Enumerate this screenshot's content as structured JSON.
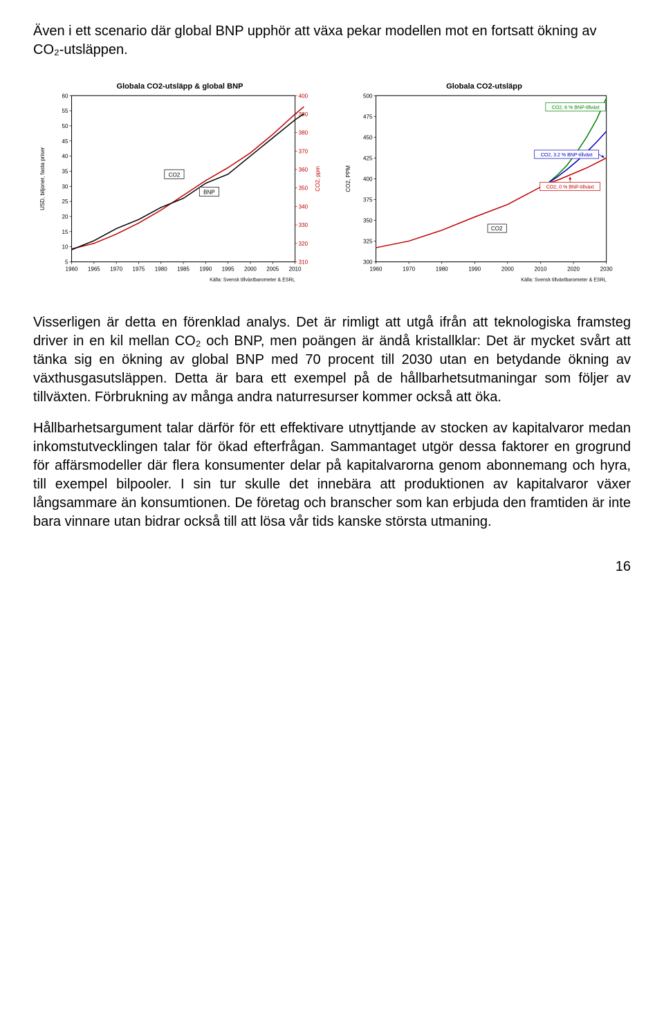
{
  "intro": "Även i ett scenario där global BNP upphör att växa pekar modellen mot en fortsatt ökning av CO₂-utsläppen.",
  "chart_left": {
    "type": "line-dual-axis",
    "title": "Globala CO2-utsläpp & global BNP",
    "title_fontsize": 11,
    "x": {
      "ticks": [
        1960,
        1965,
        1970,
        1975,
        1980,
        1985,
        1990,
        1995,
        2000,
        2005,
        2010
      ],
      "fontsize": 8
    },
    "y_left": {
      "label": "USD, biljoner, fasta priser",
      "ticks": [
        5,
        10,
        15,
        20,
        25,
        30,
        35,
        40,
        45,
        50,
        55,
        60
      ],
      "fontsize": 8,
      "label_fontsize": 8
    },
    "y_right": {
      "label": "CO2, ppm",
      "ticks": [
        310,
        320,
        330,
        340,
        350,
        360,
        370,
        380,
        390,
        400
      ],
      "fontsize": 8,
      "label_fontsize": 8,
      "label_color": "#c00000"
    },
    "series": [
      {
        "name": "CO2",
        "axis": "right",
        "color": "#c00000",
        "width": 1.5,
        "points": [
          [
            1960,
            317
          ],
          [
            1965,
            320
          ],
          [
            1970,
            325
          ],
          [
            1975,
            331
          ],
          [
            1980,
            338
          ],
          [
            1985,
            346
          ],
          [
            1990,
            354
          ],
          [
            1995,
            361
          ],
          [
            2000,
            369
          ],
          [
            2005,
            379
          ],
          [
            2010,
            390
          ],
          [
            2012,
            394
          ]
        ]
      },
      {
        "name": "BNP",
        "axis": "left",
        "color": "#000000",
        "width": 1.5,
        "points": [
          [
            1960,
            9
          ],
          [
            1965,
            12
          ],
          [
            1970,
            16
          ],
          [
            1975,
            19
          ],
          [
            1980,
            23
          ],
          [
            1985,
            26
          ],
          [
            1990,
            31
          ],
          [
            1995,
            34
          ],
          [
            2000,
            40
          ],
          [
            2005,
            46
          ],
          [
            2010,
            52
          ],
          [
            2012,
            54
          ]
        ]
      }
    ],
    "series_labels": [
      {
        "text": "CO2",
        "near": [
          1984,
          353
        ],
        "border": "#000000"
      },
      {
        "text": "BNP",
        "near": [
          1991,
          350
        ],
        "border": "#000000"
      }
    ],
    "source": "Källa: Svensk tillväxtbarometer & ESRL",
    "source_fontsize": 7,
    "background_color": "#ffffff",
    "frame_color": "#000000"
  },
  "chart_right": {
    "type": "line",
    "title": "Globala CO2-utsläpp",
    "title_fontsize": 11,
    "x": {
      "ticks": [
        1960,
        1970,
        1980,
        1990,
        2000,
        2010,
        2020,
        2030
      ],
      "fontsize": 8
    },
    "y_left": {
      "label": "CO2, PPM",
      "ticks": [
        300,
        325,
        350,
        375,
        400,
        425,
        450,
        475,
        500
      ],
      "fontsize": 8,
      "label_fontsize": 8
    },
    "series": [
      {
        "name": "CO2",
        "color": "#c00000",
        "width": 1.5,
        "points": [
          [
            1960,
            317
          ],
          [
            1970,
            325
          ],
          [
            1980,
            338
          ],
          [
            1990,
            354
          ],
          [
            2000,
            369
          ],
          [
            2010,
            390
          ],
          [
            2012,
            394
          ]
        ]
      },
      {
        "name": "CO2, 6 % BNP-tillväxt",
        "color": "#008000",
        "width": 1.5,
        "points": [
          [
            2012,
            394
          ],
          [
            2015,
            404
          ],
          [
            2018,
            416
          ],
          [
            2021,
            432
          ],
          [
            2024,
            450
          ],
          [
            2027,
            471
          ],
          [
            2030,
            497
          ]
        ]
      },
      {
        "name": "CO2, 3.2 % BNP-tillväxt",
        "color": "#0000c0",
        "width": 1.5,
        "points": [
          [
            2012,
            394
          ],
          [
            2015,
            402
          ],
          [
            2018,
            411
          ],
          [
            2021,
            421
          ],
          [
            2024,
            432
          ],
          [
            2027,
            444
          ],
          [
            2030,
            457
          ]
        ]
      },
      {
        "name": "CO2, 0 % BNP-tillväxt",
        "color": "#c00000",
        "width": 1.5,
        "points": [
          [
            2012,
            394
          ],
          [
            2015,
            398
          ],
          [
            2018,
            403
          ],
          [
            2021,
            408
          ],
          [
            2024,
            413
          ],
          [
            2027,
            419
          ],
          [
            2030,
            425
          ]
        ]
      }
    ],
    "labels": [
      {
        "text": "CO2",
        "at": [
          1998,
          337
        ],
        "border": "#000000"
      },
      {
        "text": "CO2, 6 % BNP-tillväxt",
        "at": [
          2020,
          490
        ],
        "color": "#008000",
        "fontsize": 7
      },
      {
        "text": "CO2, 3.2 % BNP-tillväxt",
        "at": [
          2018,
          435
        ],
        "color": "#0000c0",
        "fontsize": 7
      },
      {
        "text": "CO2, 0 % BNP-tillväxt",
        "at": [
          2018,
          388
        ],
        "color": "#c00000",
        "fontsize": 7
      }
    ],
    "source": "Källa: Svensk tillväxtbarometer & ESRL",
    "source_fontsize": 7,
    "background_color": "#ffffff",
    "frame_color": "#000000"
  },
  "para1": "Visserligen är detta en förenklad analys. Det är rimligt att utgå ifrån att teknologiska framsteg driver in en kil mellan CO₂ och BNP, men poängen är ändå kristallklar: Det är mycket svårt att tänka sig en ökning av global BNP med 70 procent till 2030 utan en betydande ökning av växthusgasutsläppen. Detta är bara ett exempel på de hållbarhetsutmaningar som följer av tillväxten. Förbrukning av många andra naturresurser kommer också att öka.",
  "para2": "Hållbarhetsargument talar därför för ett effektivare utnyttjande av stocken av kapitalvaror medan inkomstutvecklingen talar för ökad efterfrågan. Sammantaget utgör dessa faktorer en grogrund för affärsmodeller där flera konsumenter delar på kapitalvarorna genom abonnemang och hyra, till exempel bilpooler. I sin tur skulle det innebära att produktionen av kapitalvaror växer långsammare än konsumtionen. De företag och branscher som kan erbjuda den framtiden är inte bara vinnare utan bidrar också till att lösa vår tids kanske största utmaning.",
  "page_number": "16"
}
